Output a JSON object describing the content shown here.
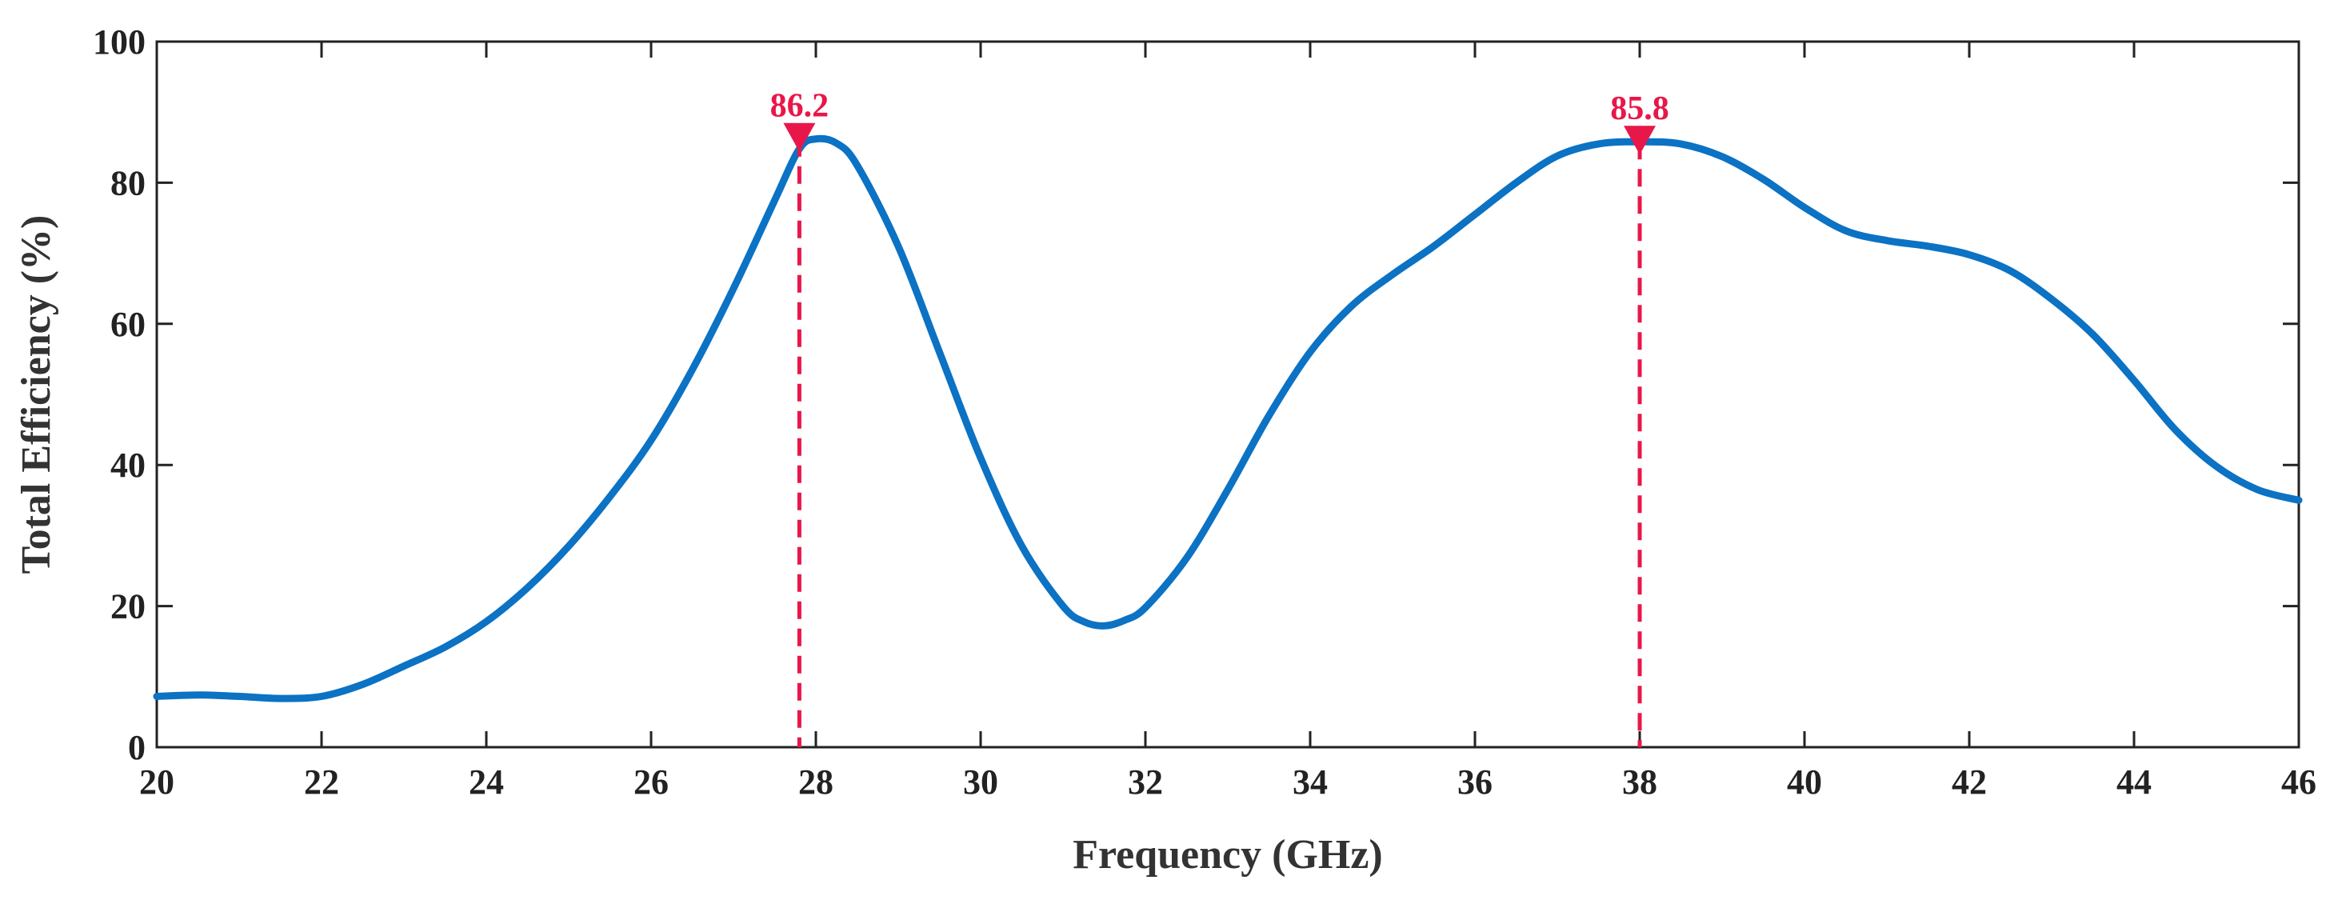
{
  "chart_data": {
    "type": "line",
    "title": "",
    "xlabel": "Frequency (GHz)",
    "ylabel": "Total Efficiency (%)",
    "xlim": [
      20,
      46
    ],
    "ylim": [
      0,
      100
    ],
    "x_ticks": [
      20,
      22,
      24,
      26,
      28,
      30,
      32,
      34,
      36,
      38,
      40,
      42,
      44,
      46
    ],
    "y_ticks": [
      0,
      20,
      40,
      60,
      80,
      100
    ],
    "grid": false,
    "colors": {
      "line": "#0b72c4",
      "marker": "#e8174a",
      "axis": "#222222"
    },
    "series": [
      {
        "name": "Total Efficiency",
        "x": [
          20,
          20.5,
          21,
          21.5,
          22,
          22.5,
          23,
          23.5,
          24,
          24.5,
          25,
          25.5,
          26,
          26.5,
          27,
          27.5,
          27.8,
          28,
          28.25,
          28.5,
          29,
          29.5,
          30,
          30.5,
          31,
          31.25,
          31.5,
          31.75,
          32,
          32.5,
          33,
          33.5,
          34,
          34.5,
          35,
          35.5,
          36,
          36.5,
          37,
          37.5,
          38,
          38.5,
          39,
          39.5,
          40,
          40.5,
          41,
          41.5,
          42,
          42.5,
          43,
          43.5,
          44,
          44.5,
          45,
          45.5,
          46
        ],
        "y": [
          7.2,
          7.4,
          7.2,
          6.9,
          7.2,
          8.9,
          11.5,
          14.2,
          17.8,
          22.6,
          28.5,
          35.5,
          43.5,
          53.5,
          65.0,
          77.5,
          84.8,
          86.2,
          85.6,
          82.5,
          71.0,
          56.0,
          41.0,
          28.5,
          20.0,
          17.8,
          17.2,
          18.0,
          19.8,
          26.8,
          36.5,
          47.0,
          56.0,
          62.5,
          67.0,
          71.0,
          75.5,
          80.0,
          83.8,
          85.5,
          85.8,
          85.5,
          83.7,
          80.5,
          76.5,
          73.2,
          71.8,
          71.0,
          69.8,
          67.5,
          63.5,
          58.5,
          52.0,
          45.0,
          39.8,
          36.5,
          35.0
        ]
      }
    ],
    "annotations": [
      {
        "x": 27.8,
        "y": 86.2,
        "label": "86.2"
      },
      {
        "x": 38.0,
        "y": 85.8,
        "label": "85.8"
      }
    ]
  }
}
